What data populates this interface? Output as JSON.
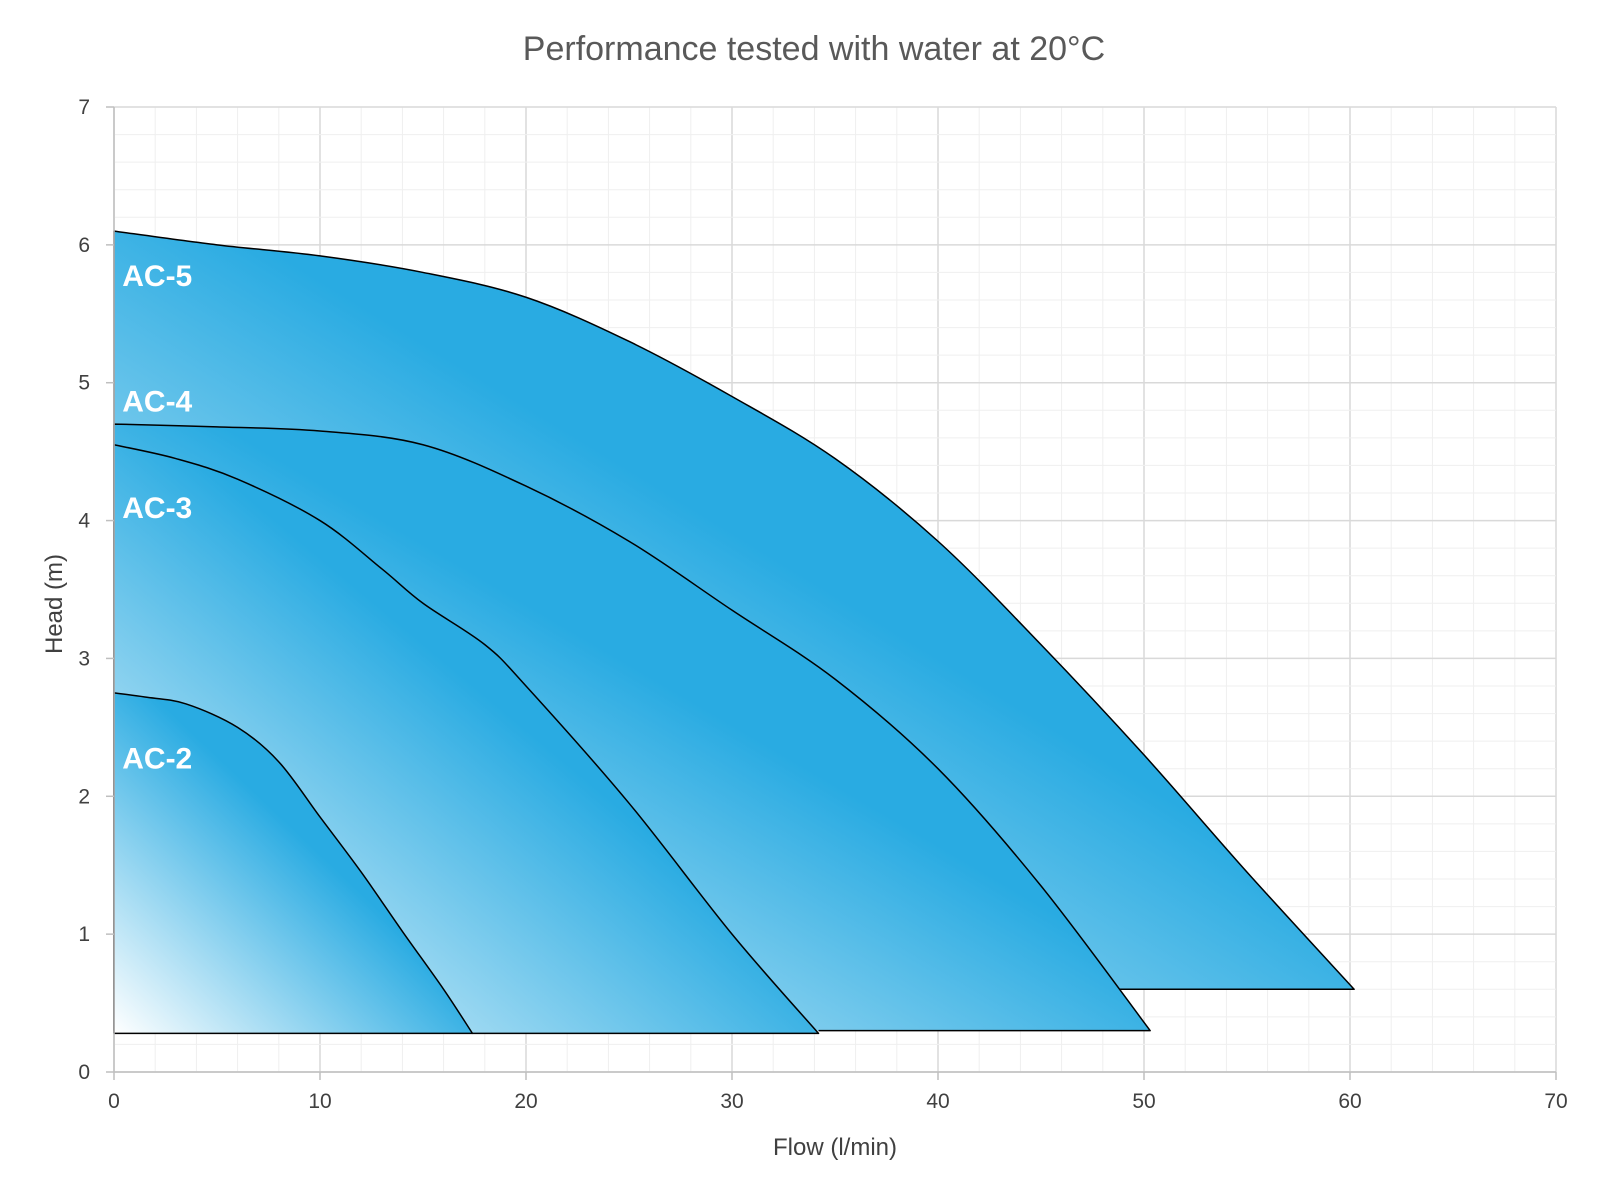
{
  "chart_data": {
    "type": "area",
    "title": "Performance tested with water at 20°C",
    "xlabel": "Flow (l/min)",
    "ylabel": "Head (m)",
    "xlim": [
      0,
      70
    ],
    "ylim": [
      0,
      7
    ],
    "x_ticks": [
      "0",
      "10",
      "20",
      "30",
      "40",
      "50",
      "60",
      "70"
    ],
    "y_ticks": [
      "0",
      "1",
      "2",
      "3",
      "4",
      "5",
      "6",
      "7"
    ],
    "grid": true,
    "colors": {
      "fill_light": "#ffffff",
      "fill_dark": "#29abe2",
      "outline": "#000000",
      "label": "#ffffff"
    },
    "series": [
      {
        "name": "AC-5",
        "label_at": [
          0.4,
          5.78
        ],
        "curve": [
          [
            0,
            6.1
          ],
          [
            5,
            6.0
          ],
          [
            10,
            5.92
          ],
          [
            15,
            5.8
          ],
          [
            20,
            5.62
          ],
          [
            25,
            5.3
          ],
          [
            30,
            4.9
          ],
          [
            35,
            4.45
          ],
          [
            40,
            3.85
          ],
          [
            45,
            3.1
          ],
          [
            50,
            2.3
          ],
          [
            55,
            1.45
          ],
          [
            60.2,
            0.6
          ]
        ],
        "base": 0.6,
        "base_start_x": 48.8
      },
      {
        "name": "AC-4",
        "label_at": [
          0.4,
          4.87
        ],
        "curve": [
          [
            0,
            4.7
          ],
          [
            5,
            4.68
          ],
          [
            10,
            4.65
          ],
          [
            15,
            4.55
          ],
          [
            20,
            4.25
          ],
          [
            25,
            3.85
          ],
          [
            30,
            3.35
          ],
          [
            35,
            2.85
          ],
          [
            40,
            2.2
          ],
          [
            45,
            1.35
          ],
          [
            50.3,
            0.3
          ]
        ],
        "base": 0.3,
        "base_start_x": 34.2
      },
      {
        "name": "AC-3",
        "label_at": [
          0.4,
          4.1
        ],
        "curve": [
          [
            0,
            4.55
          ],
          [
            3,
            4.45
          ],
          [
            6,
            4.3
          ],
          [
            10,
            4.0
          ],
          [
            13,
            3.65
          ],
          [
            15,
            3.4
          ],
          [
            18,
            3.1
          ],
          [
            20,
            2.8
          ],
          [
            25,
            1.95
          ],
          [
            30,
            1.0
          ],
          [
            34.2,
            0.28
          ]
        ],
        "base": 0.28,
        "base_start_x": 17.4
      },
      {
        "name": "AC-2",
        "label_at": [
          0.4,
          2.28
        ],
        "curve": [
          [
            0,
            2.75
          ],
          [
            1.5,
            2.72
          ],
          [
            3.5,
            2.67
          ],
          [
            6,
            2.5
          ],
          [
            8,
            2.25
          ],
          [
            10,
            1.85
          ],
          [
            12,
            1.45
          ],
          [
            14,
            1.02
          ],
          [
            16,
            0.6
          ],
          [
            17.4,
            0.28
          ]
        ],
        "base": 0.28,
        "base_start_x": 0
      }
    ]
  }
}
